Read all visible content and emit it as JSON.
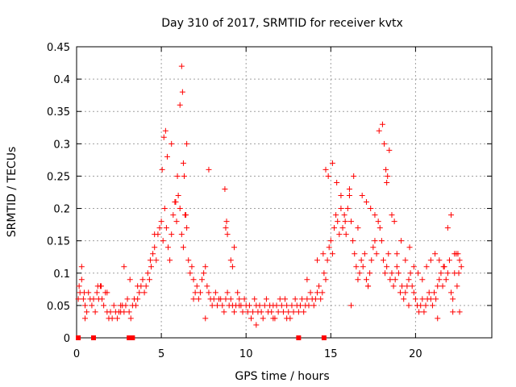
{
  "chart_data": {
    "type": "scatter",
    "title": "Day 310 of 2017, SRMTID for receiver kvtx",
    "xlabel": "GPS time / hours",
    "ylabel": "SRMTID / TECUs",
    "xlim": [
      0,
      24.5
    ],
    "ylim": [
      0,
      0.45
    ],
    "xticks": [
      "0",
      "5",
      "10",
      "15",
      "20"
    ],
    "xtick_values": [
      0,
      5,
      10,
      15,
      20
    ],
    "yticks": [
      "0",
      "0.05",
      "0.1",
      "0.15",
      "0.2",
      "0.25",
      "0.3",
      "0.35",
      "0.4",
      "0.45"
    ],
    "ytick_values": [
      0,
      0.05,
      0.1,
      0.15,
      0.2,
      0.25,
      0.3,
      0.35,
      0.4,
      0.45
    ],
    "marker": "+",
    "color": "#ff0000",
    "series": [
      {
        "name": "SRMTID",
        "x": [
          0.1,
          0.2,
          0.3,
          0.4,
          0.5,
          0.6,
          0.7,
          0.8,
          0.9,
          1.0,
          1.1,
          1.2,
          1.3,
          1.4,
          1.5,
          1.6,
          1.7,
          1.8,
          1.9,
          2.0,
          2.1,
          2.2,
          2.3,
          2.4,
          2.5,
          2.6,
          2.7,
          2.8,
          2.9,
          3.0,
          3.1,
          3.2,
          3.3,
          3.4,
          3.5,
          3.6,
          3.7,
          3.8,
          3.9,
          4.0,
          4.1,
          4.2,
          4.3,
          4.4,
          4.5,
          4.6,
          4.7,
          4.8,
          4.9,
          5.0,
          5.1,
          5.2,
          5.3,
          5.4,
          5.5,
          5.6,
          5.7,
          5.8,
          5.9,
          6.0,
          6.1,
          6.2,
          6.3,
          6.4,
          6.5,
          6.6,
          6.7,
          6.8,
          6.9,
          7.0,
          7.1,
          7.2,
          7.3,
          7.4,
          7.5,
          7.6,
          7.7,
          7.8,
          7.9,
          8.0,
          8.1,
          8.2,
          8.3,
          8.4,
          8.5,
          8.6,
          8.7,
          8.8,
          8.9,
          9.0,
          9.1,
          9.2,
          9.3,
          9.4,
          9.5,
          9.6,
          9.7,
          9.8,
          9.9,
          10.0,
          10.1,
          10.2,
          10.3,
          10.4,
          10.5,
          10.6,
          10.7,
          10.8,
          10.9,
          11.0,
          11.1,
          11.2,
          11.3,
          11.4,
          11.5,
          11.6,
          11.7,
          11.8,
          11.9,
          12.0,
          12.1,
          12.2,
          12.3,
          12.4,
          12.5,
          12.6,
          12.7,
          12.8,
          12.9,
          13.0,
          13.1,
          13.2,
          13.3,
          13.4,
          13.5,
          13.6,
          13.7,
          13.8,
          13.9,
          14.0,
          14.1,
          14.2,
          14.3,
          14.4,
          14.5,
          14.6,
          14.7,
          14.8,
          14.9,
          15.0,
          15.1,
          15.2,
          15.3,
          15.4,
          15.5,
          15.6,
          15.7,
          15.8,
          15.9,
          16.0,
          16.1,
          16.2,
          16.3,
          16.4,
          16.5,
          16.6,
          16.7,
          16.8,
          16.9,
          17.0,
          17.1,
          17.2,
          17.3,
          17.4,
          17.5,
          17.6,
          17.7,
          17.8,
          17.9,
          18.0,
          18.1,
          18.2,
          18.3,
          18.4,
          18.5,
          18.6,
          18.7,
          18.8,
          18.9,
          19.0,
          19.1,
          19.2,
          19.3,
          19.4,
          19.5,
          19.6,
          19.7,
          19.8,
          19.9,
          20.0,
          20.1,
          20.2,
          20.3,
          20.4,
          20.5,
          20.6,
          20.7,
          20.8,
          20.9,
          21.0,
          21.1,
          21.2,
          21.3,
          21.4,
          21.5,
          21.6,
          21.7,
          21.8,
          21.9,
          22.0,
          22.1,
          22.2,
          22.3,
          22.4,
          22.5,
          22.6,
          22.7,
          0.15,
          0.3,
          0.45,
          1.25,
          1.45,
          2.8,
          3.15,
          4.35,
          5.05,
          5.15,
          5.25,
          5.35,
          5.6,
          5.85,
          5.95,
          6.1,
          6.2,
          6.25,
          6.3,
          6.35,
          6.45,
          6.5,
          7.8,
          8.75,
          8.8,
          8.85,
          8.9,
          9.1,
          9.2,
          9.3,
          14.55,
          14.7,
          14.85,
          15.1,
          15.35,
          15.6,
          15.85,
          16.1,
          16.35,
          16.6,
          16.85,
          17.1,
          17.35,
          17.6,
          17.85,
          18.05,
          18.15,
          18.25,
          18.3,
          18.35,
          18.45,
          18.6,
          18.75,
          18.9,
          19.15,
          19.4,
          19.65,
          19.9,
          20.15,
          20.4,
          20.65,
          20.9,
          21.15,
          21.4,
          21.65,
          21.9,
          22.1,
          22.3,
          22.45,
          22.55,
          22.6,
          0.5,
          1.8,
          2.6,
          3.6,
          4.6,
          6.9,
          7.6,
          9.6,
          10.6,
          11.6,
          12.4,
          13.6,
          14.2,
          16.2,
          17.2,
          19.6,
          21.3,
          22.2
        ],
        "y": [
          0.06,
          0.07,
          0.11,
          0.06,
          0.05,
          0.04,
          0.07,
          0.06,
          0.05,
          0.06,
          0.04,
          0.07,
          0.06,
          0.08,
          0.06,
          0.05,
          0.07,
          0.04,
          0.03,
          0.04,
          0.03,
          0.05,
          0.04,
          0.03,
          0.04,
          0.05,
          0.05,
          0.04,
          0.05,
          0.06,
          0.04,
          0.03,
          0.05,
          0.06,
          0.05,
          0.06,
          0.07,
          0.08,
          0.09,
          0.07,
          0.08,
          0.1,
          0.09,
          0.11,
          0.13,
          0.14,
          0.12,
          0.16,
          0.17,
          0.18,
          0.15,
          0.2,
          0.17,
          0.14,
          0.12,
          0.16,
          0.19,
          0.21,
          0.18,
          0.22,
          0.2,
          0.16,
          0.14,
          0.19,
          0.17,
          0.12,
          0.1,
          0.11,
          0.09,
          0.07,
          0.08,
          0.06,
          0.07,
          0.09,
          0.1,
          0.11,
          0.08,
          0.07,
          0.06,
          0.05,
          0.06,
          0.07,
          0.05,
          0.06,
          0.06,
          0.05,
          0.04,
          0.06,
          0.07,
          0.05,
          0.06,
          0.05,
          0.04,
          0.05,
          0.07,
          0.06,
          0.05,
          0.04,
          0.06,
          0.05,
          0.04,
          0.05,
          0.03,
          0.04,
          0.06,
          0.05,
          0.04,
          0.05,
          0.04,
          0.03,
          0.05,
          0.06,
          0.04,
          0.05,
          0.04,
          0.05,
          0.03,
          0.05,
          0.04,
          0.06,
          0.05,
          0.04,
          0.06,
          0.05,
          0.04,
          0.03,
          0.05,
          0.04,
          0.06,
          0.05,
          0.04,
          0.05,
          0.06,
          0.04,
          0.05,
          0.06,
          0.05,
          0.07,
          0.06,
          0.05,
          0.06,
          0.07,
          0.08,
          0.06,
          0.07,
          0.1,
          0.09,
          0.12,
          0.14,
          0.15,
          0.13,
          0.17,
          0.19,
          0.18,
          0.16,
          0.2,
          0.17,
          0.19,
          0.16,
          0.2,
          0.22,
          0.18,
          0.15,
          0.13,
          0.11,
          0.09,
          0.1,
          0.12,
          0.11,
          0.13,
          0.09,
          0.08,
          0.1,
          0.12,
          0.14,
          0.15,
          0.13,
          0.18,
          0.17,
          0.15,
          0.12,
          0.1,
          0.11,
          0.13,
          0.09,
          0.1,
          0.08,
          0.09,
          0.11,
          0.1,
          0.07,
          0.08,
          0.06,
          0.07,
          0.08,
          0.09,
          0.1,
          0.08,
          0.07,
          0.06,
          0.05,
          0.04,
          0.05,
          0.06,
          0.04,
          0.05,
          0.06,
          0.07,
          0.06,
          0.05,
          0.07,
          0.06,
          0.08,
          0.09,
          0.1,
          0.08,
          0.11,
          0.09,
          0.1,
          0.12,
          0.07,
          0.06,
          0.1,
          0.13,
          0.13,
          0.12,
          0.11,
          0.08,
          0.09,
          0.07,
          0.08,
          0.08,
          0.11,
          0.09,
          0.12,
          0.26,
          0.31,
          0.32,
          0.28,
          0.3,
          0.21,
          0.25,
          0.36,
          0.42,
          0.38,
          0.27,
          0.25,
          0.19,
          0.3,
          0.26,
          0.23,
          0.17,
          0.18,
          0.16,
          0.12,
          0.11,
          0.14,
          0.13,
          0.26,
          0.25,
          0.27,
          0.24,
          0.22,
          0.18,
          0.23,
          0.25,
          0.17,
          0.22,
          0.21,
          0.2,
          0.19,
          0.32,
          0.33,
          0.3,
          0.26,
          0.24,
          0.25,
          0.29,
          0.19,
          0.18,
          0.13,
          0.15,
          0.12,
          0.14,
          0.11,
          0.1,
          0.09,
          0.11,
          0.12,
          0.13,
          0.12,
          0.11,
          0.17,
          0.19,
          0.13,
          0.08,
          0.1,
          0.04,
          0.03,
          0.07,
          0.04,
          0.08,
          0.16,
          0.06,
          0.03,
          0.05,
          0.02,
          0.03,
          0.03,
          0.09,
          0.12,
          0.05,
          0.08,
          0.05,
          0.03,
          0.04
        ]
      }
    ],
    "markers": {
      "y": 0,
      "x": [
        0.1,
        1.0,
        3.1,
        3.3,
        13.1,
        14.6
      ],
      "shape": "square"
    }
  }
}
